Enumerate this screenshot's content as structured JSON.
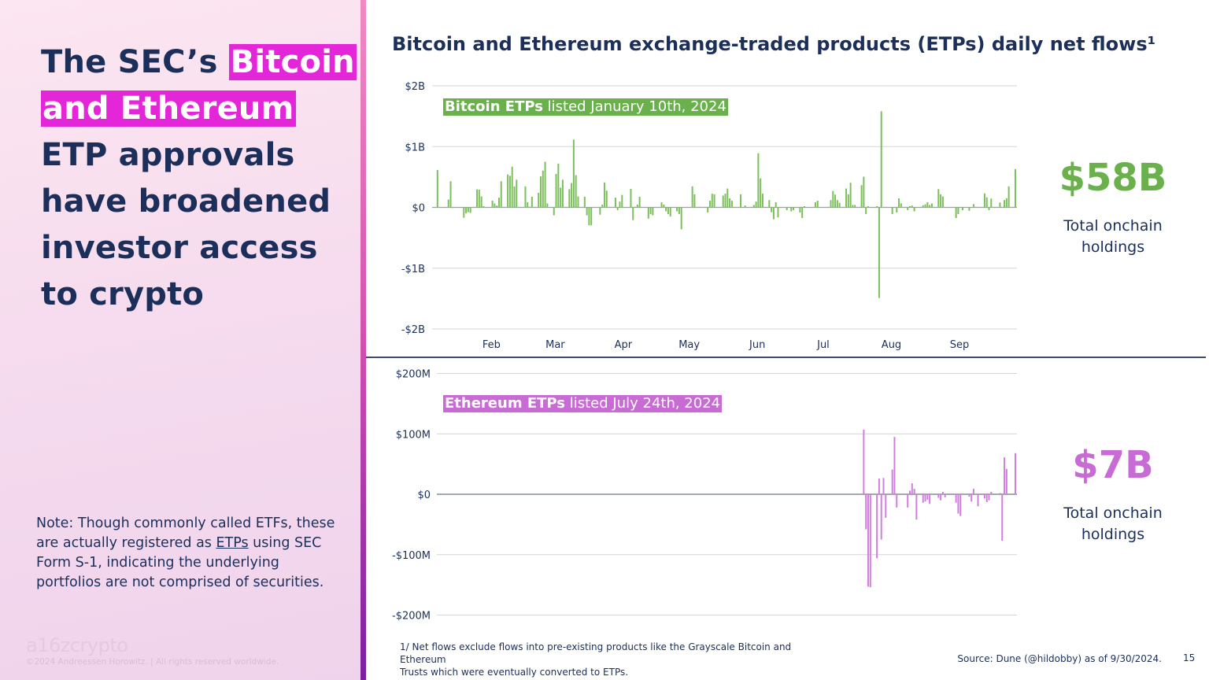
{
  "left": {
    "title": {
      "pre": "The SEC’s ",
      "hl1": "Bitcoin",
      "hl2": "and Ethereum",
      "rest1": "ETP approvals",
      "rest2": "have broadened",
      "rest3": "investor access",
      "rest4": "to crypto"
    },
    "note": {
      "pre": "Note: Though commonly called ETFs, these are actually registered as ",
      "link": "ETPs",
      "post": " using SEC Form S-1, indicating the underlying portfolios are not comprised of securities."
    },
    "logo": "a16zcrypto",
    "copyright": "©2024 Andreessen Horowitz. |  All rights reserved worldwide."
  },
  "colors": {
    "navy": "#1b2f5a",
    "highlight": "#e226d8",
    "bitcoin": "#6ab04c",
    "ethereum": "#c96bd4"
  },
  "chart_title": "Bitcoin and Ethereum exchange-traded products (ETPs) daily net flows¹",
  "btc_stat": {
    "value": "$58B",
    "label1": "Total onchain",
    "label2": "holdings"
  },
  "eth_stat": {
    "value": "$7B",
    "label1": "Total onchain",
    "label2": "holdings"
  },
  "footnote": {
    "line1": "1/ Net flows exclude flows into pre-existing products like the Grayscale Bitcoin and Ethereum",
    "line2": "Trusts which were eventually converted to ETPs."
  },
  "source": "Source: Dune (@hildobby) as of 9/30/2024.",
  "page_number": "15",
  "chart_data": [
    {
      "type": "bar",
      "annotation": {
        "bold": "Bitcoin ETPs",
        "rest": " listed January 10th, 2024"
      },
      "unit": "USD millions",
      "ylim": [
        -2000,
        2000
      ],
      "yticks": [
        {
          "v": 2000,
          "label": "$2B"
        },
        {
          "v": 1000,
          "label": "$1B"
        },
        {
          "v": 0,
          "label": "$0"
        },
        {
          "v": -1000,
          "label": "-$1B"
        },
        {
          "v": -2000,
          "label": "-$2B"
        }
      ],
      "xticks": [
        {
          "date": "2024-02-01",
          "label": "Feb"
        },
        {
          "date": "2024-03-01",
          "label": "Mar"
        },
        {
          "date": "2024-04-01",
          "label": "Apr"
        },
        {
          "date": "2024-05-01",
          "label": "May"
        },
        {
          "date": "2024-06-01",
          "label": "Jun"
        },
        {
          "date": "2024-07-01",
          "label": "Jul"
        },
        {
          "date": "2024-08-01",
          "label": "Aug"
        },
        {
          "date": "2024-09-01",
          "label": "Sep"
        }
      ],
      "xlim": [
        "2024-01-10",
        "2024-09-30"
      ],
      "grid": true,
      "color": "#7cbf5c",
      "points": [
        [
          "2024-01-11",
          615
        ],
        [
          "2024-01-16",
          130
        ],
        [
          "2024-01-17",
          430
        ],
        [
          "2024-01-18",
          -10
        ],
        [
          "2024-01-23",
          -170
        ],
        [
          "2024-01-24",
          -100
        ],
        [
          "2024-01-25",
          -80
        ],
        [
          "2024-01-26",
          -90
        ],
        [
          "2024-01-29",
          295
        ],
        [
          "2024-01-30",
          290
        ],
        [
          "2024-01-31",
          180
        ],
        [
          "2024-02-01",
          20
        ],
        [
          "2024-02-05",
          110
        ],
        [
          "2024-02-06",
          65
        ],
        [
          "2024-02-07",
          30
        ],
        [
          "2024-02-08",
          160
        ],
        [
          "2024-02-09",
          430
        ],
        [
          "2024-02-12",
          540
        ],
        [
          "2024-02-13",
          520
        ],
        [
          "2024-02-14",
          670
        ],
        [
          "2024-02-15",
          345
        ],
        [
          "2024-02-16",
          455
        ],
        [
          "2024-02-20",
          345
        ],
        [
          "2024-02-21",
          85
        ],
        [
          "2024-02-22",
          10
        ],
        [
          "2024-02-23",
          175
        ],
        [
          "2024-02-26",
          240
        ],
        [
          "2024-02-27",
          510
        ],
        [
          "2024-02-28",
          605
        ],
        [
          "2024-02-29",
          750
        ],
        [
          "2024-03-01",
          65
        ],
        [
          "2024-03-04",
          -130
        ],
        [
          "2024-03-05",
          550
        ],
        [
          "2024-03-06",
          720
        ],
        [
          "2024-03-07",
          325
        ],
        [
          "2024-03-08",
          455
        ],
        [
          "2024-03-11",
          300
        ],
        [
          "2024-03-12",
          400
        ],
        [
          "2024-03-13",
          1115
        ],
        [
          "2024-03-14",
          530
        ],
        [
          "2024-03-15",
          180
        ],
        [
          "2024-03-18",
          175
        ],
        [
          "2024-03-19",
          -130
        ],
        [
          "2024-03-20",
          -295
        ],
        [
          "2024-03-21",
          -295
        ],
        [
          "2024-03-25",
          -120
        ],
        [
          "2024-03-26",
          45
        ],
        [
          "2024-03-27",
          410
        ],
        [
          "2024-03-28",
          275
        ],
        [
          "2024-04-01",
          160
        ],
        [
          "2024-04-02",
          -45
        ],
        [
          "2024-04-03",
          95
        ],
        [
          "2024-04-04",
          205
        ],
        [
          "2024-04-08",
          305
        ],
        [
          "2024-04-09",
          -210
        ],
        [
          "2024-04-10",
          10
        ],
        [
          "2024-04-11",
          45
        ],
        [
          "2024-04-12",
          175
        ],
        [
          "2024-04-16",
          -185
        ],
        [
          "2024-04-17",
          -110
        ],
        [
          "2024-04-18",
          -130
        ],
        [
          "2024-04-22",
          85
        ],
        [
          "2024-04-23",
          45
        ],
        [
          "2024-04-24",
          -65
        ],
        [
          "2024-04-25",
          -110
        ],
        [
          "2024-04-26",
          -150
        ],
        [
          "2024-04-29",
          -65
        ],
        [
          "2024-04-30",
          -110
        ],
        [
          "2024-05-01",
          -360
        ],
        [
          "2024-05-06",
          345
        ],
        [
          "2024-05-07",
          215
        ],
        [
          "2024-05-08",
          5
        ],
        [
          "2024-05-09",
          10
        ],
        [
          "2024-05-13",
          -85
        ],
        [
          "2024-05-14",
          110
        ],
        [
          "2024-05-15",
          225
        ],
        [
          "2024-05-16",
          215
        ],
        [
          "2024-05-20",
          195
        ],
        [
          "2024-05-21",
          225
        ],
        [
          "2024-05-22",
          310
        ],
        [
          "2024-05-23",
          150
        ],
        [
          "2024-05-24",
          110
        ],
        [
          "2024-05-28",
          215
        ],
        [
          "2024-05-30",
          30
        ],
        [
          "2024-06-03",
          40
        ],
        [
          "2024-06-04",
          95
        ],
        [
          "2024-06-05",
          890
        ],
        [
          "2024-06-06",
          475
        ],
        [
          "2024-06-07",
          225
        ],
        [
          "2024-06-10",
          120
        ],
        [
          "2024-06-11",
          -80
        ],
        [
          "2024-06-12",
          -195
        ],
        [
          "2024-06-13",
          85
        ],
        [
          "2024-06-14",
          -165
        ],
        [
          "2024-06-18",
          -45
        ],
        [
          "2024-06-20",
          -65
        ],
        [
          "2024-06-21",
          -45
        ],
        [
          "2024-06-24",
          -85
        ],
        [
          "2024-06-25",
          -175
        ],
        [
          "2024-06-26",
          20
        ],
        [
          "2024-07-01",
          85
        ],
        [
          "2024-07-02",
          110
        ],
        [
          "2024-07-08",
          120
        ],
        [
          "2024-07-09",
          270
        ],
        [
          "2024-07-10",
          210
        ],
        [
          "2024-07-11",
          120
        ],
        [
          "2024-07-12",
          75
        ],
        [
          "2024-07-15",
          310
        ],
        [
          "2024-07-16",
          215
        ],
        [
          "2024-07-17",
          405
        ],
        [
          "2024-07-18",
          40
        ],
        [
          "2024-07-19",
          40
        ],
        [
          "2024-07-22",
          365
        ],
        [
          "2024-07-23",
          505
        ],
        [
          "2024-07-24",
          -110
        ],
        [
          "2024-07-25",
          20
        ],
        [
          "2024-07-29",
          20
        ],
        [
          "2024-07-30",
          -1490
        ],
        [
          "2024-07-31",
          1580
        ],
        [
          "2024-08-05",
          -110
        ],
        [
          "2024-08-07",
          -85
        ],
        [
          "2024-08-08",
          150
        ],
        [
          "2024-08-09",
          65
        ],
        [
          "2024-08-12",
          -45
        ],
        [
          "2024-08-13",
          20
        ],
        [
          "2024-08-14",
          30
        ],
        [
          "2024-08-15",
          -65
        ],
        [
          "2024-08-19",
          35
        ],
        [
          "2024-08-20",
          50
        ],
        [
          "2024-08-21",
          85
        ],
        [
          "2024-08-22",
          40
        ],
        [
          "2024-08-23",
          65
        ],
        [
          "2024-08-26",
          300
        ],
        [
          "2024-08-27",
          215
        ],
        [
          "2024-08-28",
          180
        ],
        [
          "2024-09-03",
          -175
        ],
        [
          "2024-09-04",
          -110
        ],
        [
          "2024-09-06",
          -45
        ],
        [
          "2024-09-09",
          -55
        ],
        [
          "2024-09-11",
          55
        ],
        [
          "2024-09-12",
          10
        ],
        [
          "2024-09-16",
          230
        ],
        [
          "2024-09-17",
          165
        ],
        [
          "2024-09-18",
          -45
        ],
        [
          "2024-09-19",
          145
        ],
        [
          "2024-09-23",
          80
        ],
        [
          "2024-09-25",
          120
        ],
        [
          "2024-09-26",
          150
        ],
        [
          "2024-09-27",
          345
        ],
        [
          "2024-09-30",
          630
        ]
      ]
    },
    {
      "type": "bar",
      "annotation": {
        "bold": "Ethereum ETPs",
        "rest": " listed July 24th, 2024"
      },
      "unit": "USD millions",
      "ylim": [
        -200,
        200
      ],
      "yticks": [
        {
          "v": 200,
          "label": "$200M"
        },
        {
          "v": 100,
          "label": "$100M"
        },
        {
          "v": 0,
          "label": "$0"
        },
        {
          "v": -100,
          "label": "-$100M"
        },
        {
          "v": -200,
          "label": "-$200M"
        }
      ],
      "xlim": [
        "2024-01-10",
        "2024-09-30"
      ],
      "grid": true,
      "color": "#d17fdf",
      "points": [
        [
          "2024-07-23",
          107
        ],
        [
          "2024-07-24",
          -58
        ],
        [
          "2024-07-25",
          -153
        ],
        [
          "2024-07-26",
          -154
        ],
        [
          "2024-07-29",
          -106
        ],
        [
          "2024-07-30",
          26
        ],
        [
          "2024-07-31",
          -75
        ],
        [
          "2024-08-01",
          27
        ],
        [
          "2024-08-02",
          -39
        ],
        [
          "2024-08-05",
          41
        ],
        [
          "2024-08-06",
          95
        ],
        [
          "2024-08-07",
          -22
        ],
        [
          "2024-08-12",
          -22
        ],
        [
          "2024-08-13",
          6
        ],
        [
          "2024-08-14",
          18
        ],
        [
          "2024-08-15",
          9
        ],
        [
          "2024-08-16",
          -42
        ],
        [
          "2024-08-19",
          -14
        ],
        [
          "2024-08-20",
          -12
        ],
        [
          "2024-08-21",
          -9
        ],
        [
          "2024-08-22",
          -16
        ],
        [
          "2024-08-26",
          -6
        ],
        [
          "2024-08-27",
          -10
        ],
        [
          "2024-08-28",
          4
        ],
        [
          "2024-08-29",
          -5
        ],
        [
          "2024-09-03",
          -14
        ],
        [
          "2024-09-04",
          -32
        ],
        [
          "2024-09-05",
          -36
        ],
        [
          "2024-09-09",
          -4
        ],
        [
          "2024-09-10",
          -12
        ],
        [
          "2024-09-11",
          9
        ],
        [
          "2024-09-12",
          1
        ],
        [
          "2024-09-13",
          -20
        ],
        [
          "2024-09-16",
          -7
        ],
        [
          "2024-09-17",
          -13
        ],
        [
          "2024-09-18",
          -10
        ],
        [
          "2024-09-19",
          4
        ],
        [
          "2024-09-23",
          2
        ],
        [
          "2024-09-24",
          -77
        ],
        [
          "2024-09-25",
          61
        ],
        [
          "2024-09-26",
          42
        ],
        [
          "2024-09-30",
          68
        ]
      ]
    }
  ]
}
